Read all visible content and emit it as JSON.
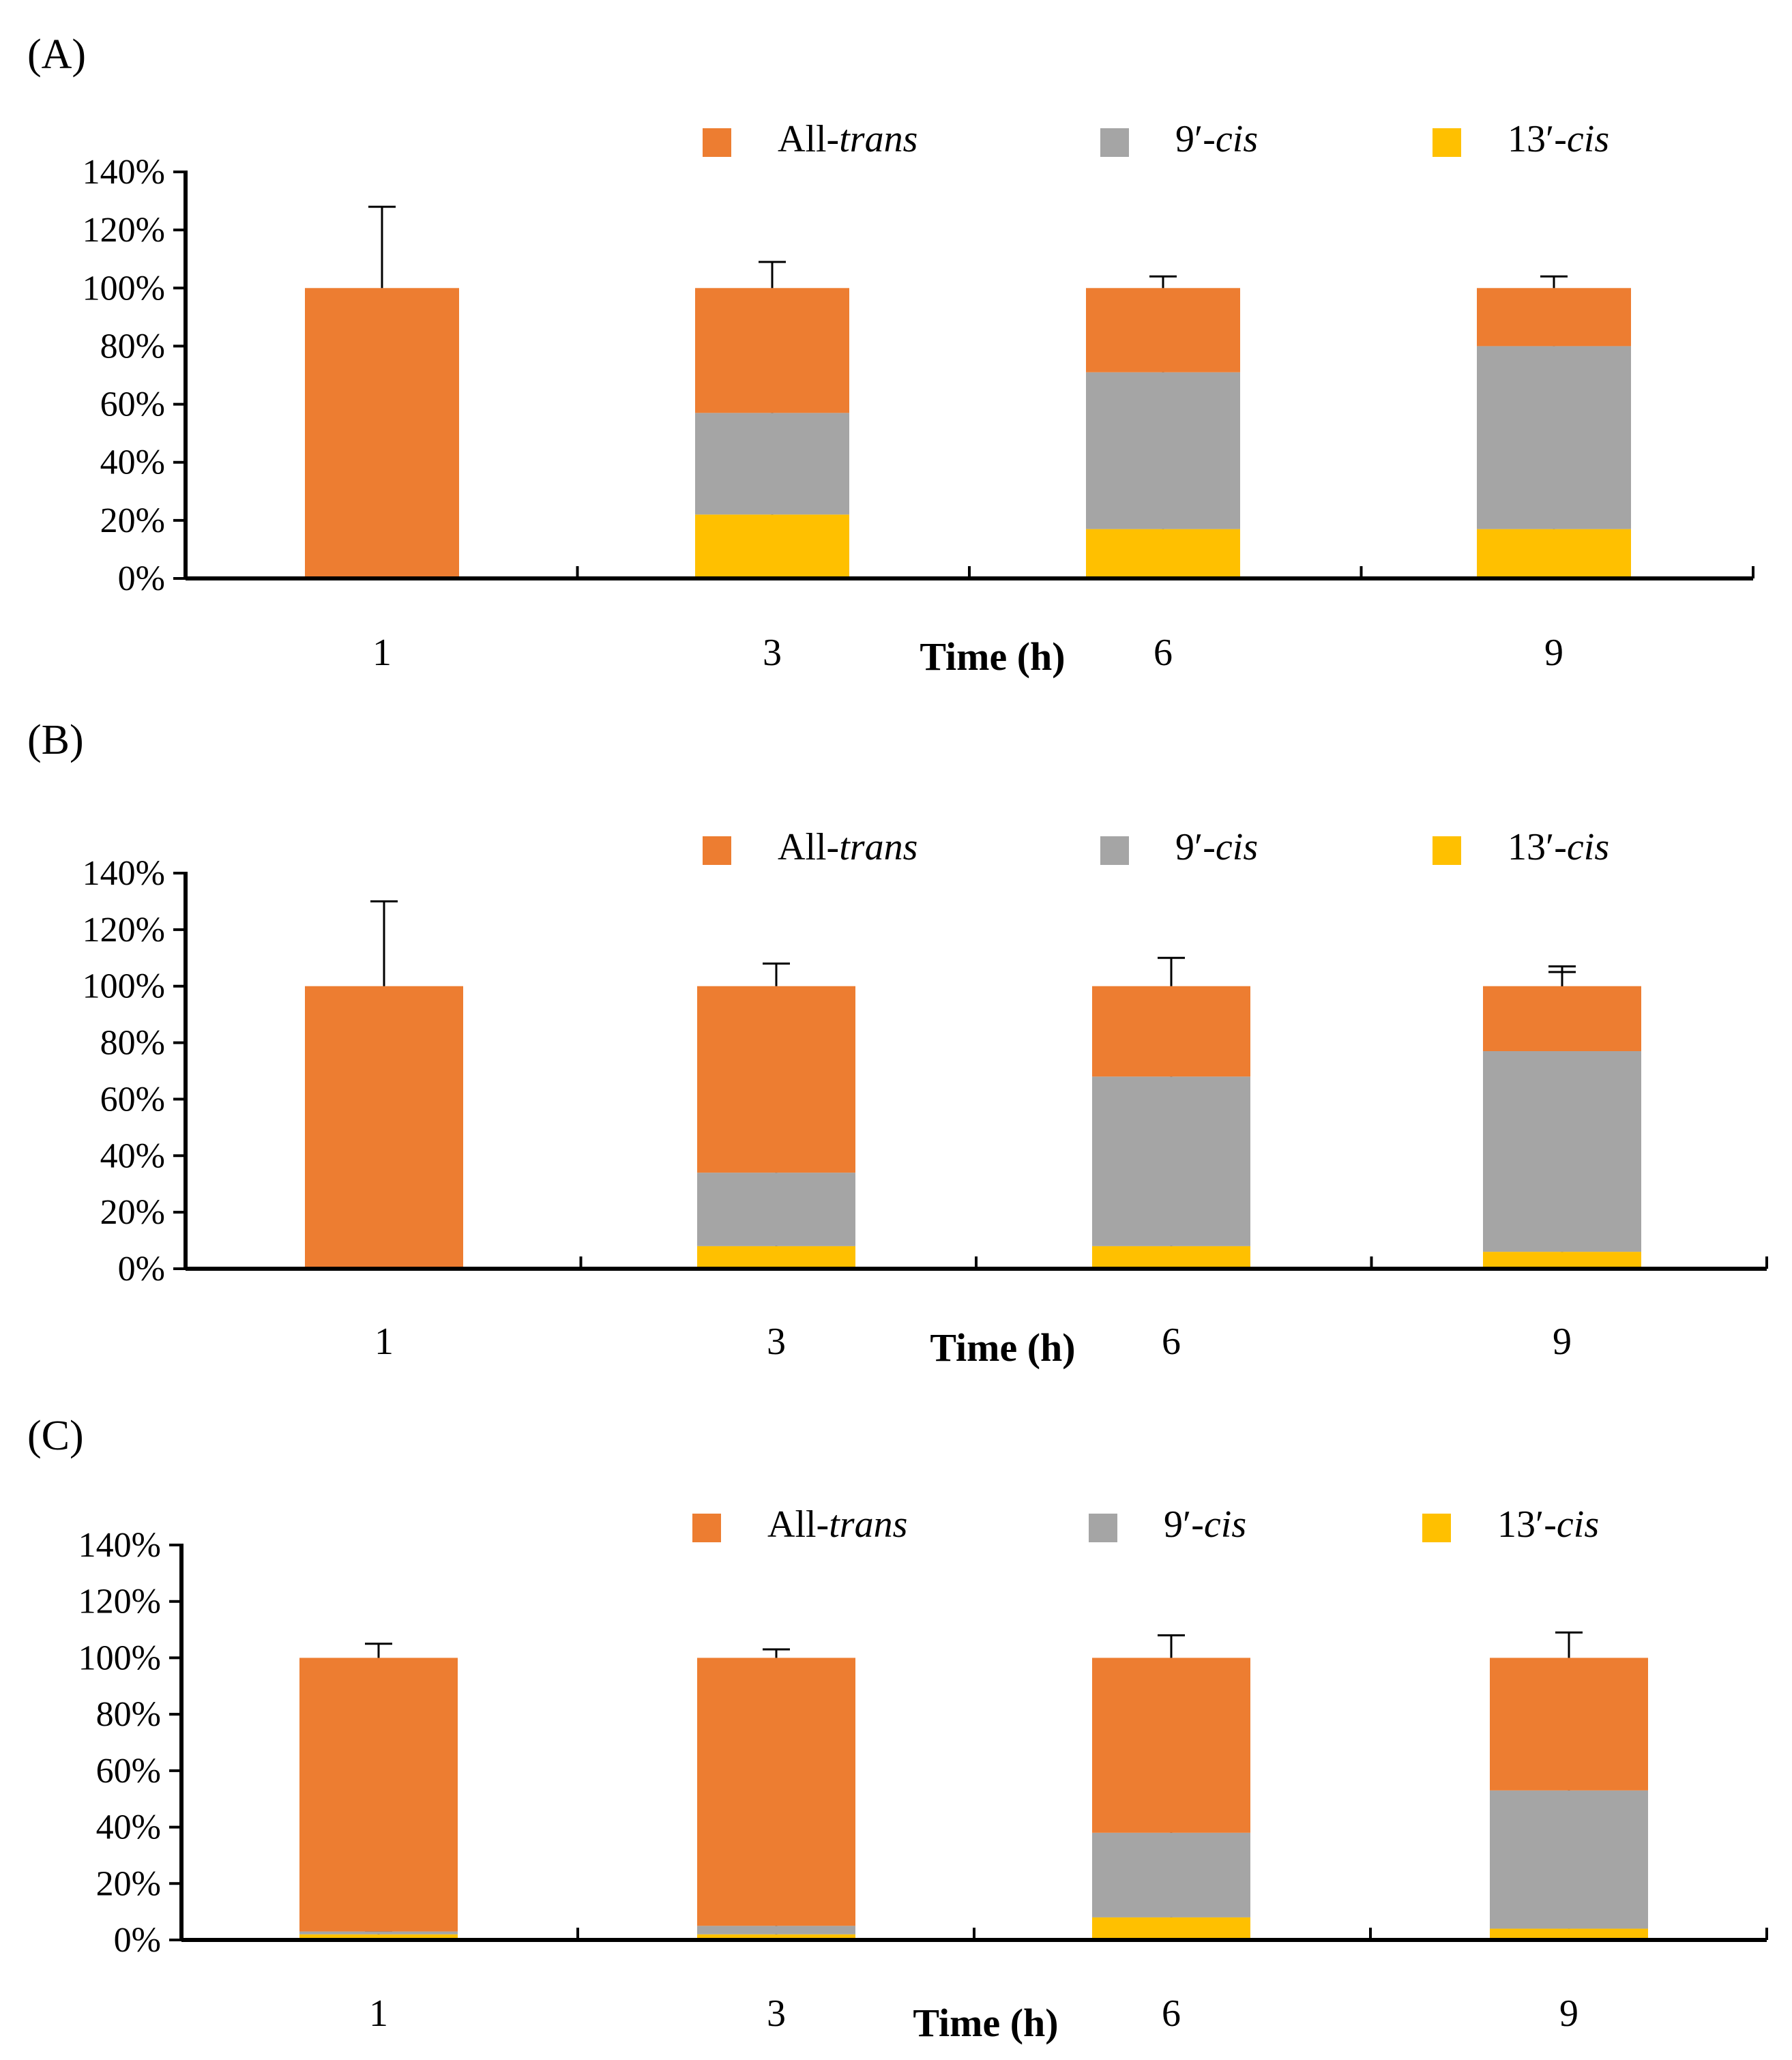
{
  "chart_data": [
    {
      "panel": "(A)",
      "type": "bar",
      "stacked": true,
      "xlabel": "Time (h)",
      "ylabel": "",
      "ylim": [
        0,
        140
      ],
      "yticks": [
        "0%",
        "20%",
        "40%",
        "60%",
        "80%",
        "100%",
        "120%",
        "140%"
      ],
      "categories": [
        "1",
        "3",
        "6",
        "9"
      ],
      "legend": [
        {
          "name": "All-",
          "italic": "trans",
          "color": "#ED7D31"
        },
        {
          "name": "9′-",
          "italic": "cis",
          "color": "#A5A5A5"
        },
        {
          "name": "13′-",
          "italic": "cis",
          "color": "#FFC000"
        }
      ],
      "series": [
        {
          "name": "13′-cis",
          "color": "#FFC000",
          "values": [
            0,
            22,
            17,
            17
          ],
          "errors": [
            0,
            6,
            4,
            5
          ]
        },
        {
          "name": "9′-cis",
          "color": "#A5A5A5",
          "values": [
            0,
            35,
            54,
            63
          ],
          "errors": [
            0,
            9,
            9,
            18
          ]
        },
        {
          "name": "All-trans",
          "color": "#ED7D31",
          "values": [
            100,
            43,
            29,
            20
          ],
          "errors": [
            28,
            9,
            4,
            4
          ]
        }
      ]
    },
    {
      "panel": "(B)",
      "type": "bar",
      "stacked": true,
      "xlabel": "Time (h)",
      "ylabel": "",
      "ylim": [
        0,
        140
      ],
      "yticks": [
        "0%",
        "20%",
        "40%",
        "60%",
        "80%",
        "100%",
        "120%",
        "140%"
      ],
      "categories": [
        "1",
        "3",
        "6",
        "9"
      ],
      "legend": [
        {
          "name": "All-",
          "italic": "trans",
          "color": "#ED7D31"
        },
        {
          "name": "9′-",
          "italic": "cis",
          "color": "#A5A5A5"
        },
        {
          "name": "13′-",
          "italic": "cis",
          "color": "#FFC000"
        }
      ],
      "series": [
        {
          "name": "13′-cis",
          "color": "#FFC000",
          "values": [
            0,
            8,
            8,
            6
          ],
          "errors": [
            0,
            1,
            1,
            3
          ]
        },
        {
          "name": "9′-cis",
          "color": "#A5A5A5",
          "values": [
            0,
            26,
            60,
            71
          ],
          "errors": [
            0,
            6,
            14,
            28
          ]
        },
        {
          "name": "All-trans",
          "color": "#ED7D31",
          "values": [
            100,
            66,
            32,
            23
          ],
          "errors": [
            30,
            8,
            10,
            7
          ]
        }
      ]
    },
    {
      "panel": "(C)",
      "type": "bar",
      "stacked": true,
      "xlabel": "Time (h)",
      "ylabel": "",
      "ylim": [
        0,
        140
      ],
      "yticks": [
        "0%",
        "20%",
        "40%",
        "60%",
        "80%",
        "100%",
        "120%",
        "140%"
      ],
      "categories": [
        "1",
        "3",
        "6",
        "9"
      ],
      "legend": [
        {
          "name": "All-",
          "italic": "trans",
          "color": "#ED7D31"
        },
        {
          "name": "9′-",
          "italic": "cis",
          "color": "#A5A5A5"
        },
        {
          "name": "13′-",
          "italic": "cis",
          "color": "#FFC000"
        }
      ],
      "series": [
        {
          "name": "13′-cis",
          "color": "#FFC000",
          "values": [
            2,
            2,
            8,
            4
          ],
          "errors": [
            1,
            1,
            2,
            1
          ]
        },
        {
          "name": "9′-cis",
          "color": "#A5A5A5",
          "values": [
            1,
            3,
            30,
            49
          ],
          "errors": [
            0,
            1,
            12,
            9
          ]
        },
        {
          "name": "All-trans",
          "color": "#ED7D31",
          "values": [
            97,
            95,
            62,
            47
          ],
          "errors": [
            5,
            3,
            8,
            9
          ]
        }
      ]
    }
  ]
}
